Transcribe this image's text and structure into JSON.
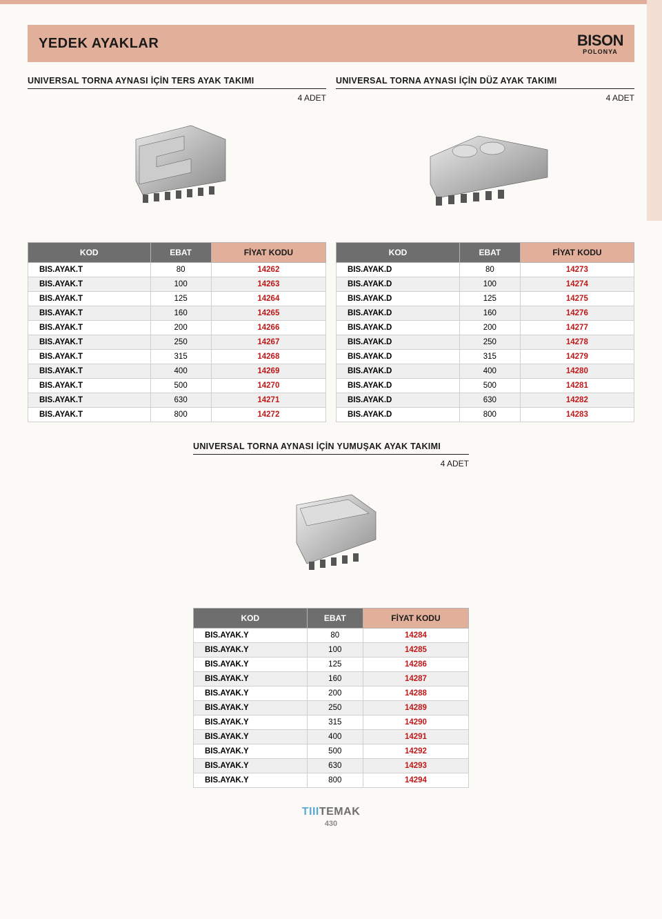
{
  "header": {
    "title": "YEDEK AYAKLAR",
    "brand": "BISON",
    "brand_sub": "POLONYA"
  },
  "colors": {
    "header_bg": "#e2b09a",
    "th_bg": "#6e6e6e",
    "th_fg": "#ffffff",
    "th_price_bg": "#e2b09a",
    "price_color": "#c11717",
    "row_alt_bg": "#efefef",
    "border": "#cfcfcf"
  },
  "sections": {
    "left": {
      "title": "UNIVERSAL TORNA AYNASI İÇİN TERS AYAK TAKIMI",
      "qty": "4 ADET",
      "columns": [
        "KOD",
        "EBAT",
        "FİYAT KODU"
      ],
      "rows": [
        [
          "BIS.AYAK.T",
          "80",
          "14262"
        ],
        [
          "BIS.AYAK.T",
          "100",
          "14263"
        ],
        [
          "BIS.AYAK.T",
          "125",
          "14264"
        ],
        [
          "BIS.AYAK.T",
          "160",
          "14265"
        ],
        [
          "BIS.AYAK.T",
          "200",
          "14266"
        ],
        [
          "BIS.AYAK.T",
          "250",
          "14267"
        ],
        [
          "BIS.AYAK.T",
          "315",
          "14268"
        ],
        [
          "BIS.AYAK.T",
          "400",
          "14269"
        ],
        [
          "BIS.AYAK.T",
          "500",
          "14270"
        ],
        [
          "BIS.AYAK.T",
          "630",
          "14271"
        ],
        [
          "BIS.AYAK.T",
          "800",
          "14272"
        ]
      ]
    },
    "right": {
      "title": "UNIVERSAL TORNA AYNASI İÇİN DÜZ AYAK TAKIMI",
      "qty": "4 ADET",
      "columns": [
        "KOD",
        "EBAT",
        "FİYAT KODU"
      ],
      "rows": [
        [
          "BIS.AYAK.D",
          "80",
          "14273"
        ],
        [
          "BIS.AYAK.D",
          "100",
          "14274"
        ],
        [
          "BIS.AYAK.D",
          "125",
          "14275"
        ],
        [
          "BIS.AYAK.D",
          "160",
          "14276"
        ],
        [
          "BIS.AYAK.D",
          "200",
          "14277"
        ],
        [
          "BIS.AYAK.D",
          "250",
          "14278"
        ],
        [
          "BIS.AYAK.D",
          "315",
          "14279"
        ],
        [
          "BIS.AYAK.D",
          "400",
          "14280"
        ],
        [
          "BIS.AYAK.D",
          "500",
          "14281"
        ],
        [
          "BIS.AYAK.D",
          "630",
          "14282"
        ],
        [
          "BIS.AYAK.D",
          "800",
          "14283"
        ]
      ]
    },
    "bottom": {
      "title": "UNIVERSAL TORNA AYNASI İÇİN YUMUŞAK AYAK TAKIMI",
      "qty": "4 ADET",
      "columns": [
        "KOD",
        "EBAT",
        "FİYAT KODU"
      ],
      "rows": [
        [
          "BIS.AYAK.Y",
          "80",
          "14284"
        ],
        [
          "BIS.AYAK.Y",
          "100",
          "14285"
        ],
        [
          "BIS.AYAK.Y",
          "125",
          "14286"
        ],
        [
          "BIS.AYAK.Y",
          "160",
          "14287"
        ],
        [
          "BIS.AYAK.Y",
          "200",
          "14288"
        ],
        [
          "BIS.AYAK.Y",
          "250",
          "14289"
        ],
        [
          "BIS.AYAK.Y",
          "315",
          "14290"
        ],
        [
          "BIS.AYAK.Y",
          "400",
          "14291"
        ],
        [
          "BIS.AYAK.Y",
          "500",
          "14292"
        ],
        [
          "BIS.AYAK.Y",
          "630",
          "14293"
        ],
        [
          "BIS.AYAK.Y",
          "800",
          "14294"
        ]
      ]
    }
  },
  "footer": {
    "brand_prefix": "TIII",
    "brand_main": "TEMAK",
    "page_number": "430"
  }
}
